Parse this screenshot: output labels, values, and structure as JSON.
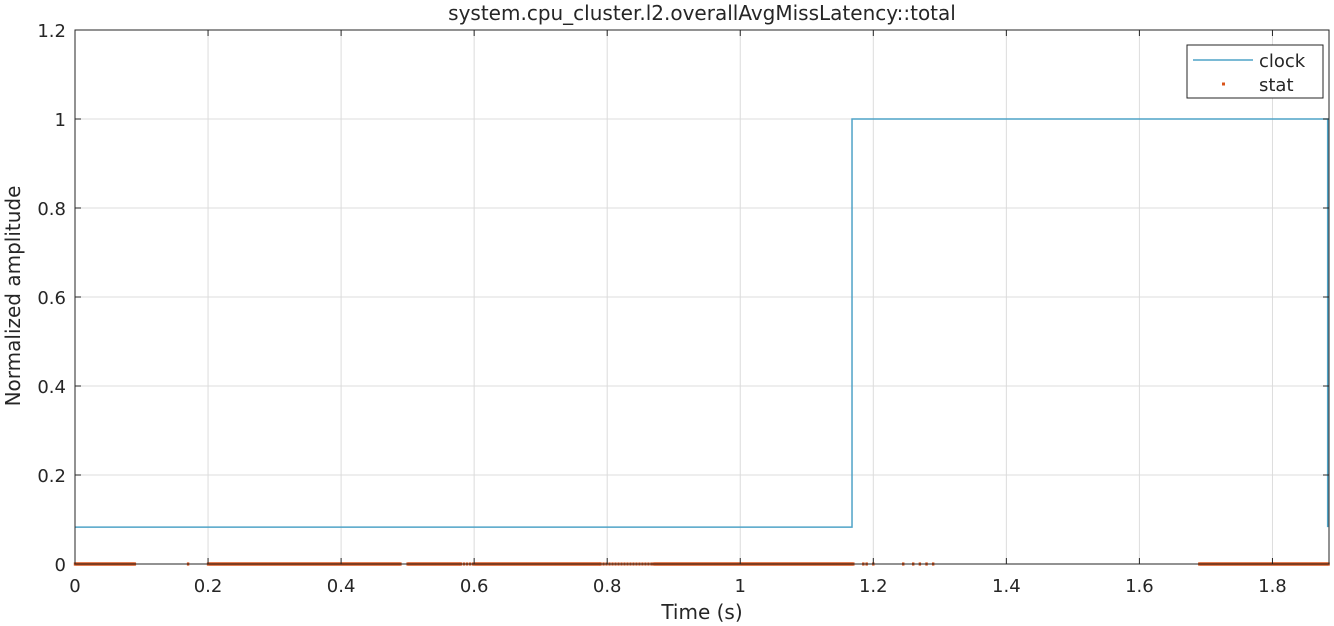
{
  "chart_data": {
    "type": "line",
    "title": "system.cpu_cluster.l2.overallAvgMissLatency::total",
    "xlabel": "Time (s)",
    "ylabel": "Normalized amplitude",
    "xlim": [
      0,
      1.885
    ],
    "ylim": [
      0,
      1.2
    ],
    "xticks": [
      0,
      0.2,
      0.4,
      0.6,
      0.8,
      1,
      1.2,
      1.4,
      1.6,
      1.8
    ],
    "xtick_labels": [
      "0",
      "0.2",
      "0.4",
      "0.6",
      "0.8",
      "1",
      "1.2",
      "1.4",
      "1.6",
      "1.8"
    ],
    "yticks": [
      0,
      0.2,
      0.4,
      0.6,
      0.8,
      1,
      1.2
    ],
    "ytick_labels": [
      "0",
      "0.2",
      "0.4",
      "0.6",
      "0.8",
      "1",
      "1.2"
    ],
    "grid": true,
    "legend_position": "top-right",
    "series": [
      {
        "name": "clock",
        "style": "step-line",
        "color": "#4fa3c7",
        "x": [
          0,
          1.168,
          1.168,
          1.883,
          1.883
        ],
        "y": [
          0.083,
          0.083,
          1.0,
          1.0,
          0.083
        ]
      },
      {
        "name": "stat",
        "style": "dots",
        "color": "#d95319",
        "y": 0,
        "dense_segments": [
          [
            0,
            0.09
          ],
          [
            0.2,
            0.49
          ],
          [
            0.5,
            0.58
          ],
          [
            0.6,
            0.79
          ],
          [
            0.87,
            1.17
          ],
          [
            1.69,
            1.885
          ]
        ],
        "sparse_segments": [
          [
            0.58,
            0.6
          ],
          [
            0.79,
            0.87
          ]
        ],
        "isolated_x": [
          0.17,
          1.185,
          1.19,
          1.2,
          1.245,
          1.26,
          1.27,
          1.28,
          1.29
        ]
      }
    ]
  }
}
